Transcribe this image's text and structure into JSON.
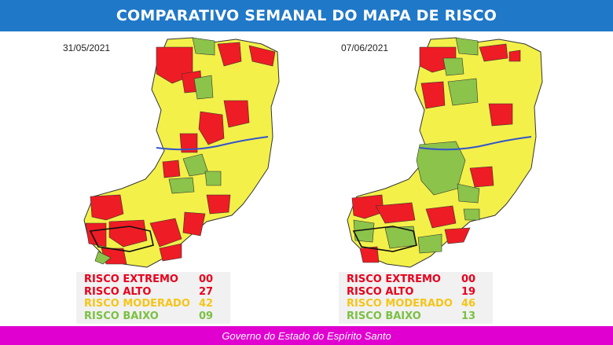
{
  "header": {
    "title": "COMPARATIVO SEMANAL DO MAPA DE RISCO"
  },
  "panels": [
    {
      "date": "31/05/2021",
      "legend": [
        {
          "label": "RISCO EXTREMO",
          "count": "00",
          "color": "#e8001c"
        },
        {
          "label": "RISCO ALTO",
          "count": "27",
          "color": "#e8001c"
        },
        {
          "label": "RISCO MODERADO",
          "count": "42",
          "color": "#f5c518"
        },
        {
          "label": "RISCO BAIXO",
          "count": "09",
          "color": "#7bc043"
        }
      ]
    },
    {
      "date": "07/06/2021",
      "legend": [
        {
          "label": "RISCO EXTREMO",
          "count": "00",
          "color": "#e8001c"
        },
        {
          "label": "RISCO ALTO",
          "count": "19",
          "color": "#e8001c"
        },
        {
          "label": "RISCO MODERADO",
          "count": "46",
          "color": "#f5c518"
        },
        {
          "label": "RISCO BAIXO",
          "count": "13",
          "color": "#7bc043"
        }
      ]
    }
  ],
  "colors": {
    "header_bg": "#1f78c8",
    "footer_bg": "#e000d0",
    "risk_high": "#ee1c24",
    "risk_moderate": "#f3f04a",
    "risk_low": "#8cc34a",
    "river": "#3355cc"
  },
  "footer": {
    "text": "Governo do Estado do Espírito Santo"
  }
}
